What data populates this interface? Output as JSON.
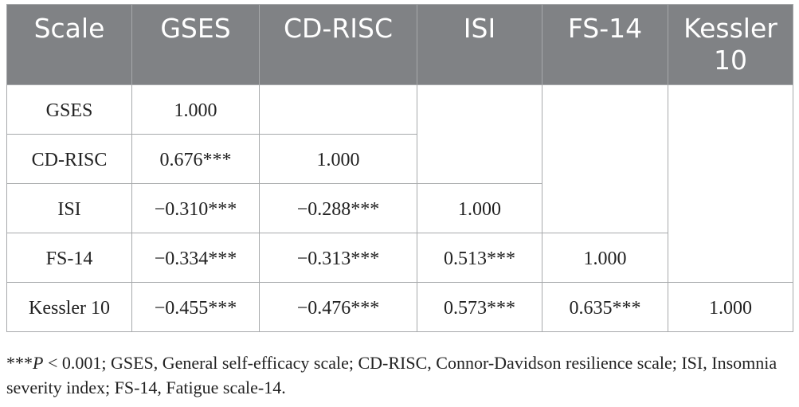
{
  "table": {
    "header": [
      "Scale",
      "GSES",
      "CD-RISC",
      "ISI",
      "FS-14",
      "Kessler 10"
    ],
    "rows": [
      [
        "GSES",
        "1.000"
      ],
      [
        "CD-RISC",
        "0.676***",
        "1.000"
      ],
      [
        "ISI",
        "−0.310***",
        "−0.288***",
        "1.000"
      ],
      [
        "FS-14",
        "−0.334***",
        "−0.313***",
        "0.513***",
        "1.000"
      ],
      [
        "Kessler 10",
        "−0.455***",
        "−0.476***",
        "0.573***",
        "0.635***",
        "1.000"
      ]
    ]
  },
  "footnote": {
    "marker": "***",
    "p": "P",
    "text": " < 0.001; GSES, General self-efficacy scale; CD-RISC, Connor-Davidson resilience scale; ISI, Insomnia severity index; FS-14, Fatigue scale-14."
  }
}
